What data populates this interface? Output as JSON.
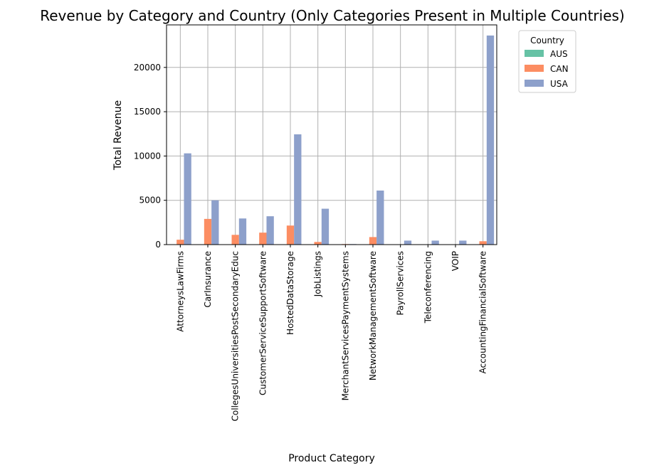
{
  "chart_data": {
    "type": "bar",
    "title": "Revenue by Category and Country (Only Categories Present in Multiple Countries)",
    "xlabel": "Product Category",
    "ylabel": "Total Revenue",
    "categories": [
      "AttorneysLawFirms",
      "CarInsurance",
      "CollegesUniversitiesPostSecondaryEduc",
      "CustomerServiceSupportSoftware",
      "HostedDataStorage",
      "JobListings",
      "MerchantServicesPaymentSystems",
      "NetworkManagementSoftware",
      "PayrollServices",
      "Teleconferencing",
      "VOIP",
      "AccountingFinancialSoftware"
    ],
    "series": [
      {
        "name": "AUS",
        "color": "#66c2a5",
        "values": [
          0,
          0,
          0,
          40,
          40,
          0,
          20,
          30,
          0,
          0,
          0,
          0
        ]
      },
      {
        "name": "CAN",
        "color": "#fc8d62",
        "values": [
          550,
          2900,
          1100,
          1350,
          2150,
          300,
          60,
          850,
          40,
          40,
          40,
          380
        ]
      },
      {
        "name": "USA",
        "color": "#8da0cb",
        "values": [
          10300,
          5000,
          2950,
          3200,
          12450,
          4050,
          60,
          6100,
          450,
          450,
          450,
          23600
        ]
      }
    ],
    "ylim": [
      0,
      24800
    ],
    "yticks": [
      0,
      5000,
      10000,
      15000,
      20000
    ],
    "grid": true,
    "legend": {
      "title": "Country",
      "placement": "outside-top-right"
    }
  }
}
